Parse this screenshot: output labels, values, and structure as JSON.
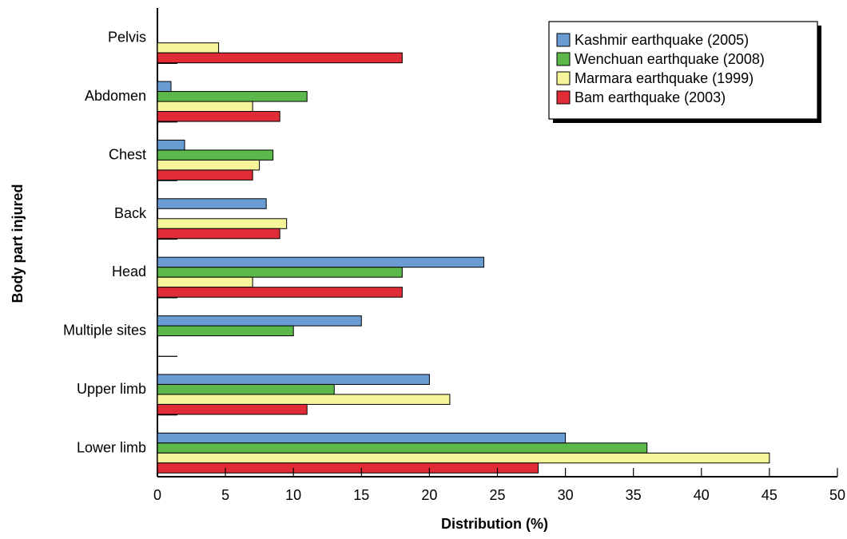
{
  "chart_data": {
    "type": "bar",
    "orientation": "horizontal",
    "categories": [
      "Pelvis",
      "Abdomen",
      "Chest",
      "Back",
      "Head",
      "Multiple sites",
      "Upper limb",
      "Lower limb"
    ],
    "series": [
      {
        "name": "Kashmir earthquake (2005)",
        "color": "#6a9bd2",
        "values": [
          null,
          1,
          2,
          8,
          24,
          15,
          20,
          30
        ]
      },
      {
        "name": "Wenchuan earthquake (2008)",
        "color": "#5cb84a",
        "values": [
          null,
          11,
          8.5,
          null,
          18,
          10,
          13,
          36
        ]
      },
      {
        "name": "Marmara earthquake (1999)",
        "color": "#f7f59a",
        "values": [
          4.5,
          7,
          7.5,
          9.5,
          7,
          null,
          21.5,
          45
        ]
      },
      {
        "name": "Bam earthquake (2003)",
        "color": "#e02c36",
        "values": [
          18,
          9,
          7,
          9,
          18,
          null,
          11,
          28
        ]
      }
    ],
    "xlabel": "Distribution (%)",
    "ylabel": "Body part injured",
    "xlim": [
      0,
      50
    ],
    "xticks": [
      0,
      5,
      10,
      15,
      20,
      25,
      30,
      35,
      40,
      45,
      50
    ],
    "grid": false,
    "legend": "top-right"
  }
}
